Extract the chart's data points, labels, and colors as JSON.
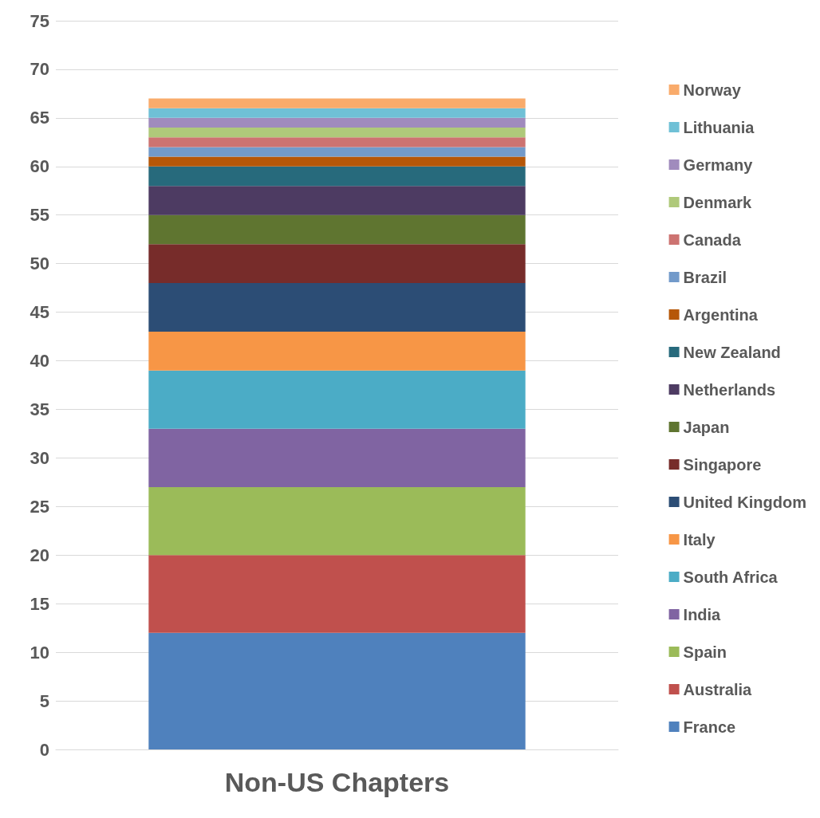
{
  "chart_data": {
    "type": "bar",
    "stacked": true,
    "categories": [
      "Non-US Chapters"
    ],
    "series": [
      {
        "name": "France",
        "color": "#4f81bd",
        "values": [
          12
        ]
      },
      {
        "name": "Australia",
        "color": "#c0504d",
        "values": [
          8
        ]
      },
      {
        "name": "Spain",
        "color": "#9bbb59",
        "values": [
          7
        ]
      },
      {
        "name": "India",
        "color": "#8064a2",
        "values": [
          6
        ]
      },
      {
        "name": "South Africa",
        "color": "#4bacc6",
        "values": [
          6
        ]
      },
      {
        "name": "Italy",
        "color": "#f79646",
        "values": [
          4
        ]
      },
      {
        "name": "United Kingdom",
        "color": "#2c4d75",
        "values": [
          5
        ]
      },
      {
        "name": "Singapore",
        "color": "#772c2a",
        "values": [
          4
        ]
      },
      {
        "name": "Japan",
        "color": "#5f7530",
        "values": [
          3
        ]
      },
      {
        "name": "Netherlands",
        "color": "#4d3b62",
        "values": [
          3
        ]
      },
      {
        "name": "New Zealand",
        "color": "#276a7c",
        "values": [
          2
        ]
      },
      {
        "name": "Argentina",
        "color": "#b65708",
        "values": [
          1
        ]
      },
      {
        "name": "Brazil",
        "color": "#729aca",
        "values": [
          1
        ]
      },
      {
        "name": "Canada",
        "color": "#cd7371",
        "values": [
          1
        ]
      },
      {
        "name": "Denmark",
        "color": "#afc97a",
        "values": [
          1
        ]
      },
      {
        "name": "Germany",
        "color": "#a08bbd",
        "values": [
          1
        ]
      },
      {
        "name": "Lithuania",
        "color": "#6fc0d6",
        "values": [
          1
        ]
      },
      {
        "name": "Norway",
        "color": "#f9ab6b",
        "values": [
          1
        ]
      }
    ],
    "ylim": [
      0,
      75
    ],
    "yticks": [
      0,
      5,
      10,
      15,
      20,
      25,
      30,
      35,
      40,
      45,
      50,
      55,
      60,
      65,
      70,
      75
    ],
    "grid": "y",
    "legend": "right"
  }
}
